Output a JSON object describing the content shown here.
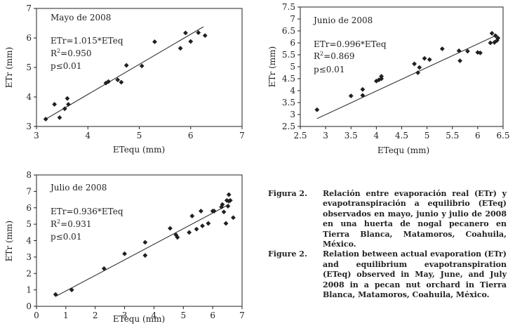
{
  "chart_data": [
    {
      "type": "scatter",
      "title": "Mayo de 2008",
      "xlabel": "ETequ (mm)",
      "ylabel": "ETr (mm)",
      "xlim": [
        3,
        7
      ],
      "ylim": [
        3,
        7
      ],
      "xticks": [
        "3",
        "4",
        "5",
        "6",
        "7"
      ],
      "yticks": [
        "3",
        "4",
        "5",
        "6",
        "7"
      ],
      "annotations": {
        "equation": "ETr=1.015*ETeq",
        "r2_prefix": "R",
        "r2_exp": "2",
        "r2_value": "=0.950",
        "p": "p≤0.01"
      },
      "points": [
        [
          3.18,
          3.25
        ],
        [
          3.35,
          3.75
        ],
        [
          3.45,
          3.3
        ],
        [
          3.55,
          3.6
        ],
        [
          3.6,
          3.95
        ],
        [
          3.62,
          3.75
        ],
        [
          4.35,
          4.47
        ],
        [
          4.4,
          4.52
        ],
        [
          4.58,
          4.58
        ],
        [
          4.65,
          4.5
        ],
        [
          4.75,
          5.07
        ],
        [
          5.05,
          5.05
        ],
        [
          5.3,
          5.87
        ],
        [
          5.8,
          5.65
        ],
        [
          5.9,
          6.17
        ],
        [
          6.0,
          5.88
        ],
        [
          6.15,
          6.18
        ],
        [
          6.28,
          6.08
        ]
      ],
      "trend": [
        [
          3.15,
          3.22
        ],
        [
          6.25,
          6.38
        ]
      ]
    },
    {
      "type": "scatter",
      "title": "Junio de 2008",
      "xlabel": "ETequ (mm)",
      "ylabel": "ETr (mm)",
      "xlim": [
        2.5,
        6.5
      ],
      "ylim": [
        2.5,
        7.5
      ],
      "xticks": [
        "2.5",
        "3",
        "3.5",
        "4",
        "4.5",
        "5",
        "5.5",
        "6",
        "6.5"
      ],
      "yticks": [
        "2.5",
        "3",
        "3.5",
        "4",
        "4.5",
        "5",
        "5.5",
        "6",
        "6.5",
        "7",
        "7.5"
      ],
      "annotations": {
        "equation": "ETr=0.996*ETeq",
        "r2_prefix": "R",
        "r2_exp": "2",
        "r2_value": "=0.869",
        "p": "p≤0.01"
      },
      "points": [
        [
          2.83,
          3.2
        ],
        [
          3.5,
          3.78
        ],
        [
          3.73,
          4.05
        ],
        [
          3.73,
          3.8
        ],
        [
          4.0,
          4.4
        ],
        [
          4.05,
          4.45
        ],
        [
          4.1,
          4.5
        ],
        [
          4.1,
          4.6
        ],
        [
          4.75,
          5.12
        ],
        [
          4.82,
          4.75
        ],
        [
          4.85,
          4.97
        ],
        [
          4.95,
          5.35
        ],
        [
          5.05,
          5.3
        ],
        [
          5.3,
          5.75
        ],
        [
          5.63,
          5.67
        ],
        [
          5.65,
          5.25
        ],
        [
          5.8,
          5.65
        ],
        [
          6.0,
          5.6
        ],
        [
          6.05,
          5.58
        ],
        [
          6.25,
          6.0
        ],
        [
          6.28,
          6.4
        ],
        [
          6.33,
          6.02
        ],
        [
          6.35,
          6.3
        ],
        [
          6.38,
          6.1
        ],
        [
          6.4,
          6.2
        ]
      ],
      "trend": [
        [
          2.83,
          2.83
        ],
        [
          6.35,
          6.3
        ]
      ]
    },
    {
      "type": "scatter",
      "title": "Julio de 2008",
      "xlabel": "ETequ (mm)",
      "ylabel": "ETr (mm)",
      "xlim": [
        0,
        7
      ],
      "ylim": [
        0,
        8
      ],
      "xticks": [
        "0",
        "1",
        "2",
        "3",
        "4",
        "5",
        "6",
        "7"
      ],
      "yticks": [
        "0",
        "1",
        "2",
        "3",
        "4",
        "5",
        "6",
        "7",
        "8"
      ],
      "annotations": {
        "equation": "ETr=0.936*ETeq",
        "r2_prefix": "R",
        "r2_exp": "2",
        "r2_value": "=0.931",
        "p": "p≤0.01"
      },
      "points": [
        [
          0.65,
          0.72
        ],
        [
          1.2,
          1.0
        ],
        [
          2.3,
          2.3
        ],
        [
          3.0,
          3.2
        ],
        [
          3.7,
          3.9
        ],
        [
          3.7,
          3.1
        ],
        [
          4.55,
          4.75
        ],
        [
          4.75,
          4.35
        ],
        [
          4.8,
          4.2
        ],
        [
          5.2,
          4.5
        ],
        [
          5.3,
          5.5
        ],
        [
          5.45,
          4.7
        ],
        [
          5.6,
          5.8
        ],
        [
          5.65,
          4.9
        ],
        [
          5.85,
          5.05
        ],
        [
          6.0,
          5.8
        ],
        [
          6.05,
          5.8
        ],
        [
          6.3,
          6.05
        ],
        [
          6.33,
          6.2
        ],
        [
          6.38,
          5.75
        ],
        [
          6.45,
          5.05
        ],
        [
          6.48,
          6.45
        ],
        [
          6.52,
          6.1
        ],
        [
          6.55,
          6.4
        ],
        [
          6.55,
          6.8
        ],
        [
          6.6,
          6.45
        ],
        [
          6.7,
          5.4
        ]
      ],
      "trend": [
        [
          0.65,
          0.6
        ],
        [
          6.55,
          6.2
        ]
      ]
    }
  ],
  "caption": [
    {
      "label": "Figura 2.",
      "text": "Relación entre evaporación real (ETr) y evapotranspiración a equilibrio (ETeq) observados en mayo, junio y julio de 2008 en una huerta de nogal pecanero en Tierra Blanca, Matamoros, Coahuila, México."
    },
    {
      "label": "Figure 2.",
      "text": "Relation between actual evaporation (ETr) and equilibrium evapotranspiration (ETeq) observed in May, June, and July 2008 in a pecan nut orchard in Tierra Blanca, Matamoros, Coahuila, México."
    }
  ]
}
